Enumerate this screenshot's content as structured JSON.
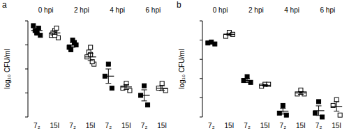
{
  "chart_data": [
    {
      "type": "strip",
      "title": "a",
      "y_label": "log₁₀ CFU/ml",
      "categories": [
        "0 hpi",
        "2 hpi",
        "4 hpi",
        "6 hpi"
      ],
      "ylim": [
        2,
        6
      ],
      "yticks": [
        2,
        3,
        4,
        5,
        6
      ],
      "tick_labels": false,
      "series": [
        {
          "name": "7₂",
          "color": "#000000",
          "marker": "filled-square",
          "values": [
            [
              5.5,
              5.8,
              5.4,
              5.6,
              5.7,
              5.5
            ],
            [
              5.2,
              4.9,
              5.0,
              4.8,
              5.1
            ],
            [
              4.2,
              3.7,
              3.2
            ],
            [
              3.3,
              2.9,
              2.5
            ]
          ],
          "mean": [
            5.6,
            5.0,
            3.7,
            2.9
          ],
          "sem": [
            0.07,
            0.1,
            0.3,
            0.23
          ]
        },
        {
          "name": "15I",
          "color": "#000000",
          "marker": "open-square",
          "values": [
            [
              5.6,
              5.4,
              5.3,
              5.5,
              5.7,
              5.4
            ],
            [
              4.9,
              4.5,
              4.2,
              4.7,
              4.3,
              4.6
            ],
            [
              3.4,
              3.2,
              3.1
            ],
            [
              3.4,
              3.2,
              3.1
            ]
          ],
          "mean": [
            5.5,
            4.5,
            3.25,
            3.2
          ],
          "sem": [
            0.06,
            0.15,
            0.1,
            0.1
          ]
        }
      ]
    },
    {
      "type": "strip",
      "title": "b",
      "y_label": "log₁₀ CFU/ml",
      "categories": [
        "0 hpi",
        "2 hpi",
        "4 hpi",
        "6 hpi"
      ],
      "ylim": [
        0,
        5
      ],
      "yticks": [
        0,
        1,
        2,
        3,
        4,
        5
      ],
      "tick_labels": false,
      "series": [
        {
          "name": "7₂",
          "color": "#000000",
          "marker": "filled-square",
          "values": [
            [
              3.9,
              3.85,
              3.8
            ],
            [
              2.1,
              1.9,
              1.8
            ],
            [
              0.6,
              0.2,
              0.1
            ],
            [
              0.8,
              0.2,
              0.0
            ]
          ],
          "mean": [
            3.85,
            1.9,
            0.3,
            0.33
          ],
          "sem": [
            0.03,
            0.1,
            0.15,
            0.25
          ]
        },
        {
          "name": "15I",
          "color": "#000000",
          "marker": "open-square",
          "values": [
            [
              4.4,
              4.2,
              4.3
            ],
            [
              1.7,
              1.6,
              1.7
            ],
            [
              1.4,
              1.2,
              1.2
            ],
            [
              0.9,
              0.6,
              0.1
            ]
          ],
          "mean": [
            4.3,
            1.65,
            1.25,
            0.55
          ],
          "sem": [
            0.06,
            0.04,
            0.07,
            0.25
          ]
        }
      ]
    }
  ]
}
